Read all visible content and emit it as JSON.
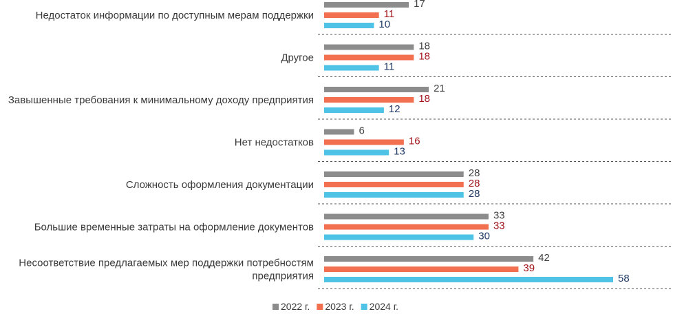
{
  "chart_data": {
    "type": "bar",
    "orientation": "horizontal",
    "categories": [
      [
        "Недостаток информации по доступным мерам поддержки"
      ],
      [
        "Другое"
      ],
      [
        "Завышенные требования к минимальному доходу предприятия"
      ],
      [
        "Нет недостатков"
      ],
      [
        "Сложность оформления документации"
      ],
      [
        "Большие временные затраты на оформление документов"
      ],
      [
        "Несоответствие предлагаемых мер поддержки потребностям",
        "предприятия"
      ]
    ],
    "series": [
      {
        "name": "2022 г.",
        "color": "#8c8c8c",
        "label_color": "#404040",
        "values": [
          17,
          18,
          21,
          6,
          28,
          33,
          42
        ]
      },
      {
        "name": "2023 г.",
        "color": "#f26f50",
        "label_color": "#a3141b",
        "values": [
          11,
          18,
          18,
          16,
          28,
          33,
          39
        ]
      },
      {
        "name": "2024 г.",
        "color": "#4ec3e6",
        "label_color": "#1f3864",
        "values": [
          10,
          11,
          12,
          13,
          28,
          30,
          58
        ]
      }
    ],
    "xlim": [
      0,
      58
    ],
    "grid": false,
    "legend_position": "bottom"
  }
}
